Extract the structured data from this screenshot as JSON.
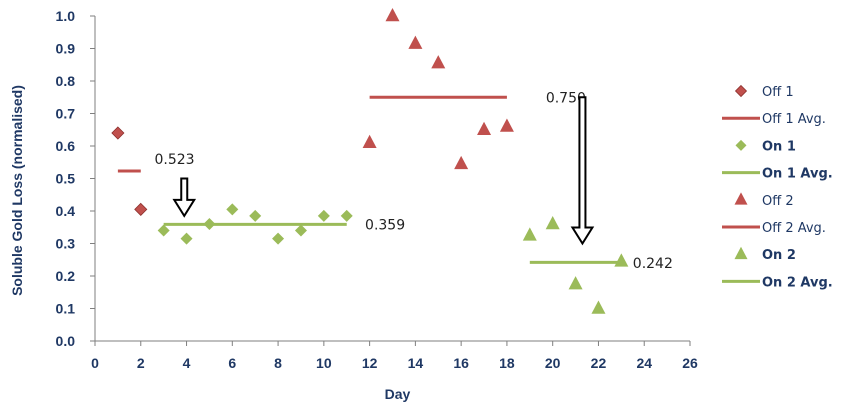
{
  "chart_data": {
    "type": "scatter",
    "title": "",
    "xlabel": "Day",
    "ylabel": "Soluble Gold Loss (normalised)",
    "xlim": [
      0,
      26
    ],
    "ylim": [
      0,
      1.0
    ],
    "x_ticks": [
      0,
      2,
      4,
      6,
      8,
      10,
      12,
      14,
      16,
      18,
      20,
      22,
      24,
      26
    ],
    "x_tick_labels": [
      "0",
      "2",
      "4",
      "6",
      "8",
      "10",
      "12",
      "14",
      "16",
      "18",
      "20",
      "22",
      "24",
      "26"
    ],
    "y_ticks": [
      0,
      0.1,
      0.2,
      0.3,
      0.4,
      0.5,
      0.6,
      0.7,
      0.8,
      0.9,
      1.0
    ],
    "y_tick_labels": [
      "0.0",
      "0.1",
      "0.2",
      "0.3",
      "0.4",
      "0.5",
      "0.6",
      "0.7",
      "0.8",
      "0.9",
      "1.0"
    ],
    "grid": false,
    "legend_position": "right",
    "series": [
      {
        "name": "Off 1",
        "kind": "points",
        "marker": "diamond",
        "color": "#c0504d",
        "points": [
          [
            1,
            0.64
          ],
          [
            2,
            0.405
          ]
        ]
      },
      {
        "name": "Off 1 Avg.",
        "kind": "segment",
        "color": "#c0504d",
        "x": [
          1,
          2
        ],
        "y": 0.523
      },
      {
        "name": "On 1",
        "kind": "points",
        "marker": "diamond",
        "color": "#9bbb59",
        "points": [
          [
            3,
            0.34
          ],
          [
            4,
            0.315
          ],
          [
            5,
            0.36
          ],
          [
            6,
            0.405
          ],
          [
            7,
            0.385
          ],
          [
            8,
            0.315
          ],
          [
            9,
            0.34
          ],
          [
            10,
            0.385
          ],
          [
            11,
            0.385
          ]
        ]
      },
      {
        "name": "On 1 Avg.",
        "kind": "segment",
        "color": "#9bbb59",
        "x": [
          3,
          11
        ],
        "y": 0.359
      },
      {
        "name": "Off 2",
        "kind": "points",
        "marker": "triangle",
        "color": "#c0504d",
        "points": [
          [
            12,
            0.61
          ],
          [
            13,
            1.0
          ],
          [
            14,
            0.915
          ],
          [
            15,
            0.855
          ],
          [
            16,
            0.545
          ],
          [
            17,
            0.65
          ],
          [
            18,
            0.66
          ]
        ]
      },
      {
        "name": "Off 2 Avg.",
        "kind": "segment",
        "color": "#c0504d",
        "x": [
          12,
          18
        ],
        "y": 0.75
      },
      {
        "name": "On 2",
        "kind": "points",
        "marker": "triangle",
        "color": "#9bbb59",
        "points": [
          [
            19,
            0.325
          ],
          [
            20,
            0.36
          ],
          [
            21,
            0.175
          ],
          [
            22,
            0.1
          ],
          [
            23,
            0.245
          ]
        ]
      },
      {
        "name": "On 2 Avg.",
        "kind": "segment",
        "color": "#9bbb59",
        "x": [
          19,
          23
        ],
        "y": 0.242
      }
    ],
    "annotations": [
      {
        "text": "0.523",
        "x": 2.6,
        "y": 0.56
      },
      {
        "text": "0.359",
        "x": 11.8,
        "y": 0.359
      },
      {
        "text": "0.750",
        "x": 19.7,
        "y": 0.75
      },
      {
        "text": "0.242",
        "x": 23.5,
        "y": 0.24
      }
    ],
    "arrows": [
      {
        "x": 3.9,
        "y_from": 0.5,
        "y_to": 0.385
      },
      {
        "x": 21.3,
        "y_from": 0.75,
        "y_to": 0.3
      }
    ],
    "legend": [
      {
        "label": "Off 1",
        "symbol": "diamond",
        "color": "#c0504d",
        "bold": false
      },
      {
        "label": "Off 1 Avg.",
        "symbol": "line",
        "color": "#c0504d",
        "bold": false
      },
      {
        "label": "On 1",
        "symbol": "diamond",
        "color": "#9bbb59",
        "bold": true
      },
      {
        "label": "On 1 Avg.",
        "symbol": "line",
        "color": "#9bbb59",
        "bold": true
      },
      {
        "label": "Off 2",
        "symbol": "triangle",
        "color": "#c0504d",
        "bold": false
      },
      {
        "label": "Off 2 Avg.",
        "symbol": "line",
        "color": "#c0504d",
        "bold": false
      },
      {
        "label": "On 2",
        "symbol": "triangle",
        "color": "#9bbb59",
        "bold": true
      },
      {
        "label": "On 2 Avg.",
        "symbol": "line",
        "color": "#9bbb59",
        "bold": true
      }
    ]
  }
}
